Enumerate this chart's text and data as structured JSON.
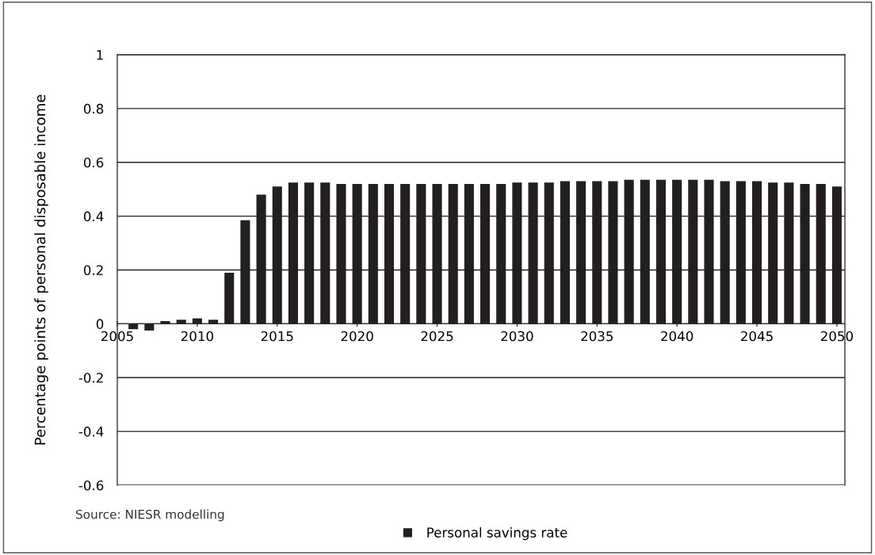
{
  "chart_data": {
    "type": "bar",
    "x": [
      2006,
      2007,
      2008,
      2009,
      2010,
      2011,
      2012,
      2013,
      2014,
      2015,
      2016,
      2017,
      2018,
      2019,
      2020,
      2021,
      2022,
      2023,
      2024,
      2025,
      2026,
      2027,
      2028,
      2029,
      2030,
      2031,
      2032,
      2033,
      2034,
      2035,
      2036,
      2037,
      2038,
      2039,
      2040,
      2041,
      2042,
      2043,
      2044,
      2045,
      2046,
      2047,
      2048,
      2049,
      2050
    ],
    "series": [
      {
        "name": "Personal savings rate",
        "color": "#231f20",
        "values": [
          -0.02,
          -0.025,
          0.01,
          0.015,
          0.02,
          0.015,
          0.19,
          0.385,
          0.48,
          0.51,
          0.525,
          0.525,
          0.525,
          0.52,
          0.52,
          0.52,
          0.52,
          0.52,
          0.52,
          0.52,
          0.52,
          0.52,
          0.52,
          0.52,
          0.525,
          0.525,
          0.525,
          0.53,
          0.53,
          0.53,
          0.53,
          0.535,
          0.535,
          0.535,
          0.535,
          0.535,
          0.535,
          0.53,
          0.53,
          0.53,
          0.525,
          0.525,
          0.52,
          0.52,
          0.51
        ]
      }
    ],
    "ylabel": "Percentage points of personal disposable income",
    "xlim": [
      2005,
      2050.5
    ],
    "xticks": [
      2005,
      2010,
      2015,
      2020,
      2025,
      2030,
      2035,
      2040,
      2045,
      2050
    ],
    "ylim": [
      -0.6,
      1
    ],
    "yticks": [
      -0.6,
      -0.4,
      -0.2,
      0,
      0.2,
      0.4,
      0.6,
      0.8,
      1
    ],
    "grid": "y",
    "legend": "bottom",
    "annotations": [
      "Source: NIESR modelling"
    ]
  }
}
